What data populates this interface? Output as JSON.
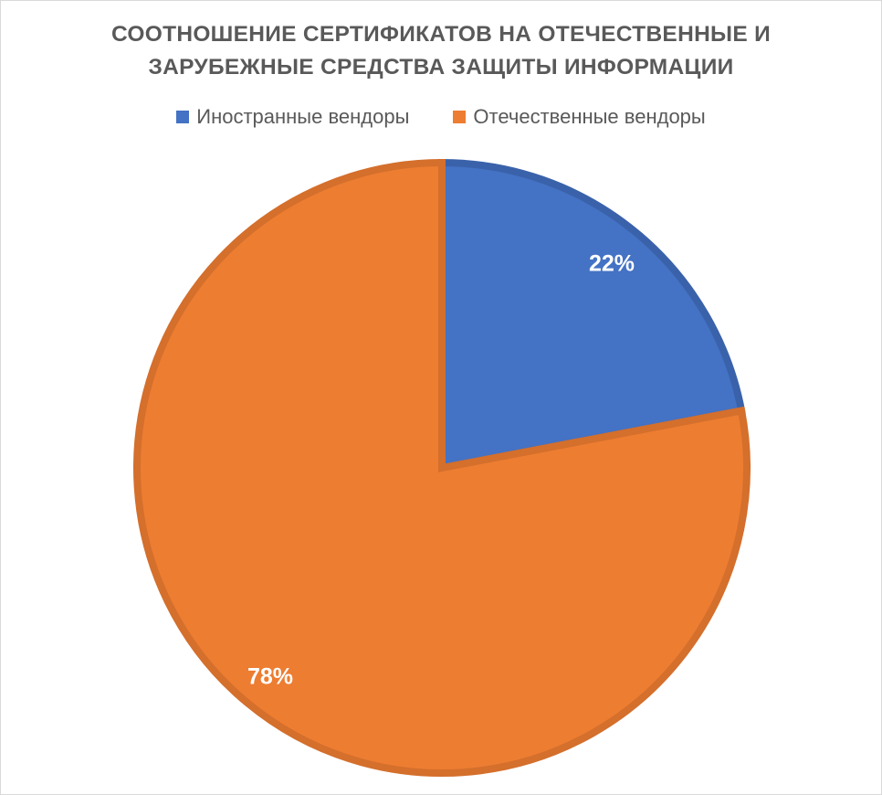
{
  "chart_data": {
    "type": "pie",
    "title_lines": [
      "СООТНОШЕНИЕ СЕРТИФИКАТОВ НА ОТЕЧЕСТВЕННЫЕ  И",
      "ЗАРУБЕЖНЫЕ СРЕДСТВА ЗАЩИТЫ ИНФОРМАЦИИ"
    ],
    "legend_position": "top",
    "slices": [
      {
        "name": "Иностранные вендоры",
        "value": 22,
        "label": "22%",
        "color": "#4472C4"
      },
      {
        "name": "Отечественные вендоры",
        "value": 78,
        "label": "78%",
        "color": "#ED7D31"
      }
    ],
    "start_angle_deg": 0,
    "slice_border_colors": [
      "#3A62AA",
      "#D46F2C"
    ]
  }
}
